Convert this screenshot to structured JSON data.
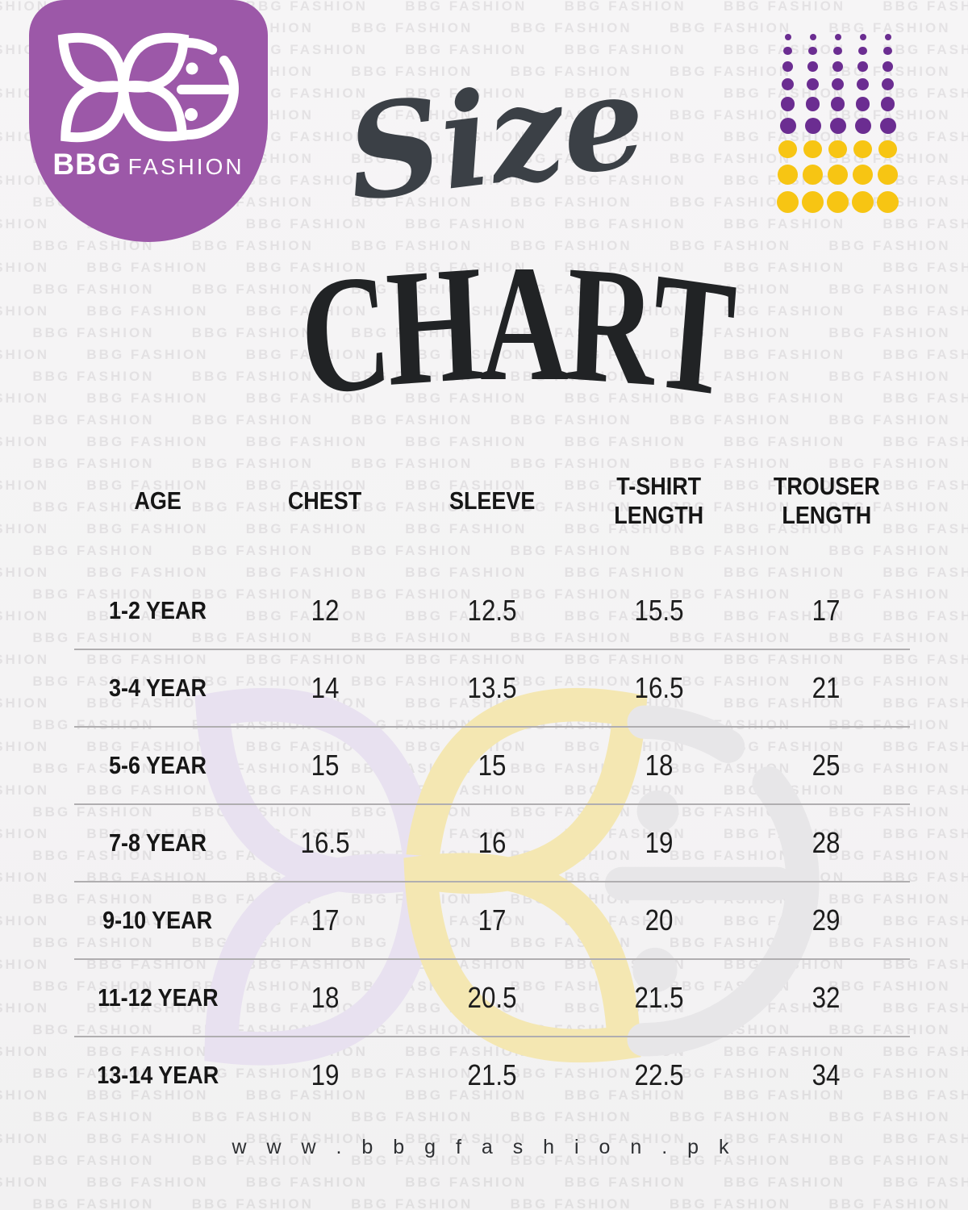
{
  "brand": {
    "logo_text_bold": "BBG",
    "logo_text_light": "FASHION"
  },
  "title": {
    "script_word": "Size",
    "main_word": "CHART"
  },
  "chart_data": {
    "type": "table",
    "title": "Size Chart",
    "columns": [
      "AGE",
      "CHEST",
      "SLEEVE",
      "T-SHIRT LENGTH",
      "TROUSER LENGTH"
    ],
    "rows": [
      [
        "1-2 YEAR",
        "12",
        "12.5",
        "15.5",
        "17"
      ],
      [
        "3-4 YEAR",
        "14",
        "13.5",
        "16.5",
        "21"
      ],
      [
        "5-6 YEAR",
        "15",
        "15",
        "18",
        "25"
      ],
      [
        "7-8 YEAR",
        "16.5",
        "16",
        "19",
        "28"
      ],
      [
        "9-10 YEAR",
        "17",
        "17",
        "20",
        "29"
      ],
      [
        "11-12 YEAR",
        "18",
        "20.5",
        "21.5",
        "32"
      ],
      [
        "13-14 YEAR",
        "19",
        "21.5",
        "22.5",
        "34"
      ]
    ]
  },
  "watermark": {
    "text": "BBG FASHION"
  },
  "footer": {
    "website_url": "w w w . b b g f a s h i o n . p k"
  },
  "colors": {
    "badge_purple": "#9c58a8",
    "dot_purple": "#6b2d91",
    "dot_yellow": "#f7c513",
    "title_gray": "#3b4046",
    "title_dark": "#212325",
    "watermark_lavender": "#e8e1f0",
    "watermark_yellow": "#f4e7b2",
    "watermark_gray": "#e7e6e8",
    "divider_gray": "#b0aeb0"
  },
  "dots_grid": {
    "columns": 5,
    "purple_rows": 6,
    "yellow_rows": 3
  }
}
